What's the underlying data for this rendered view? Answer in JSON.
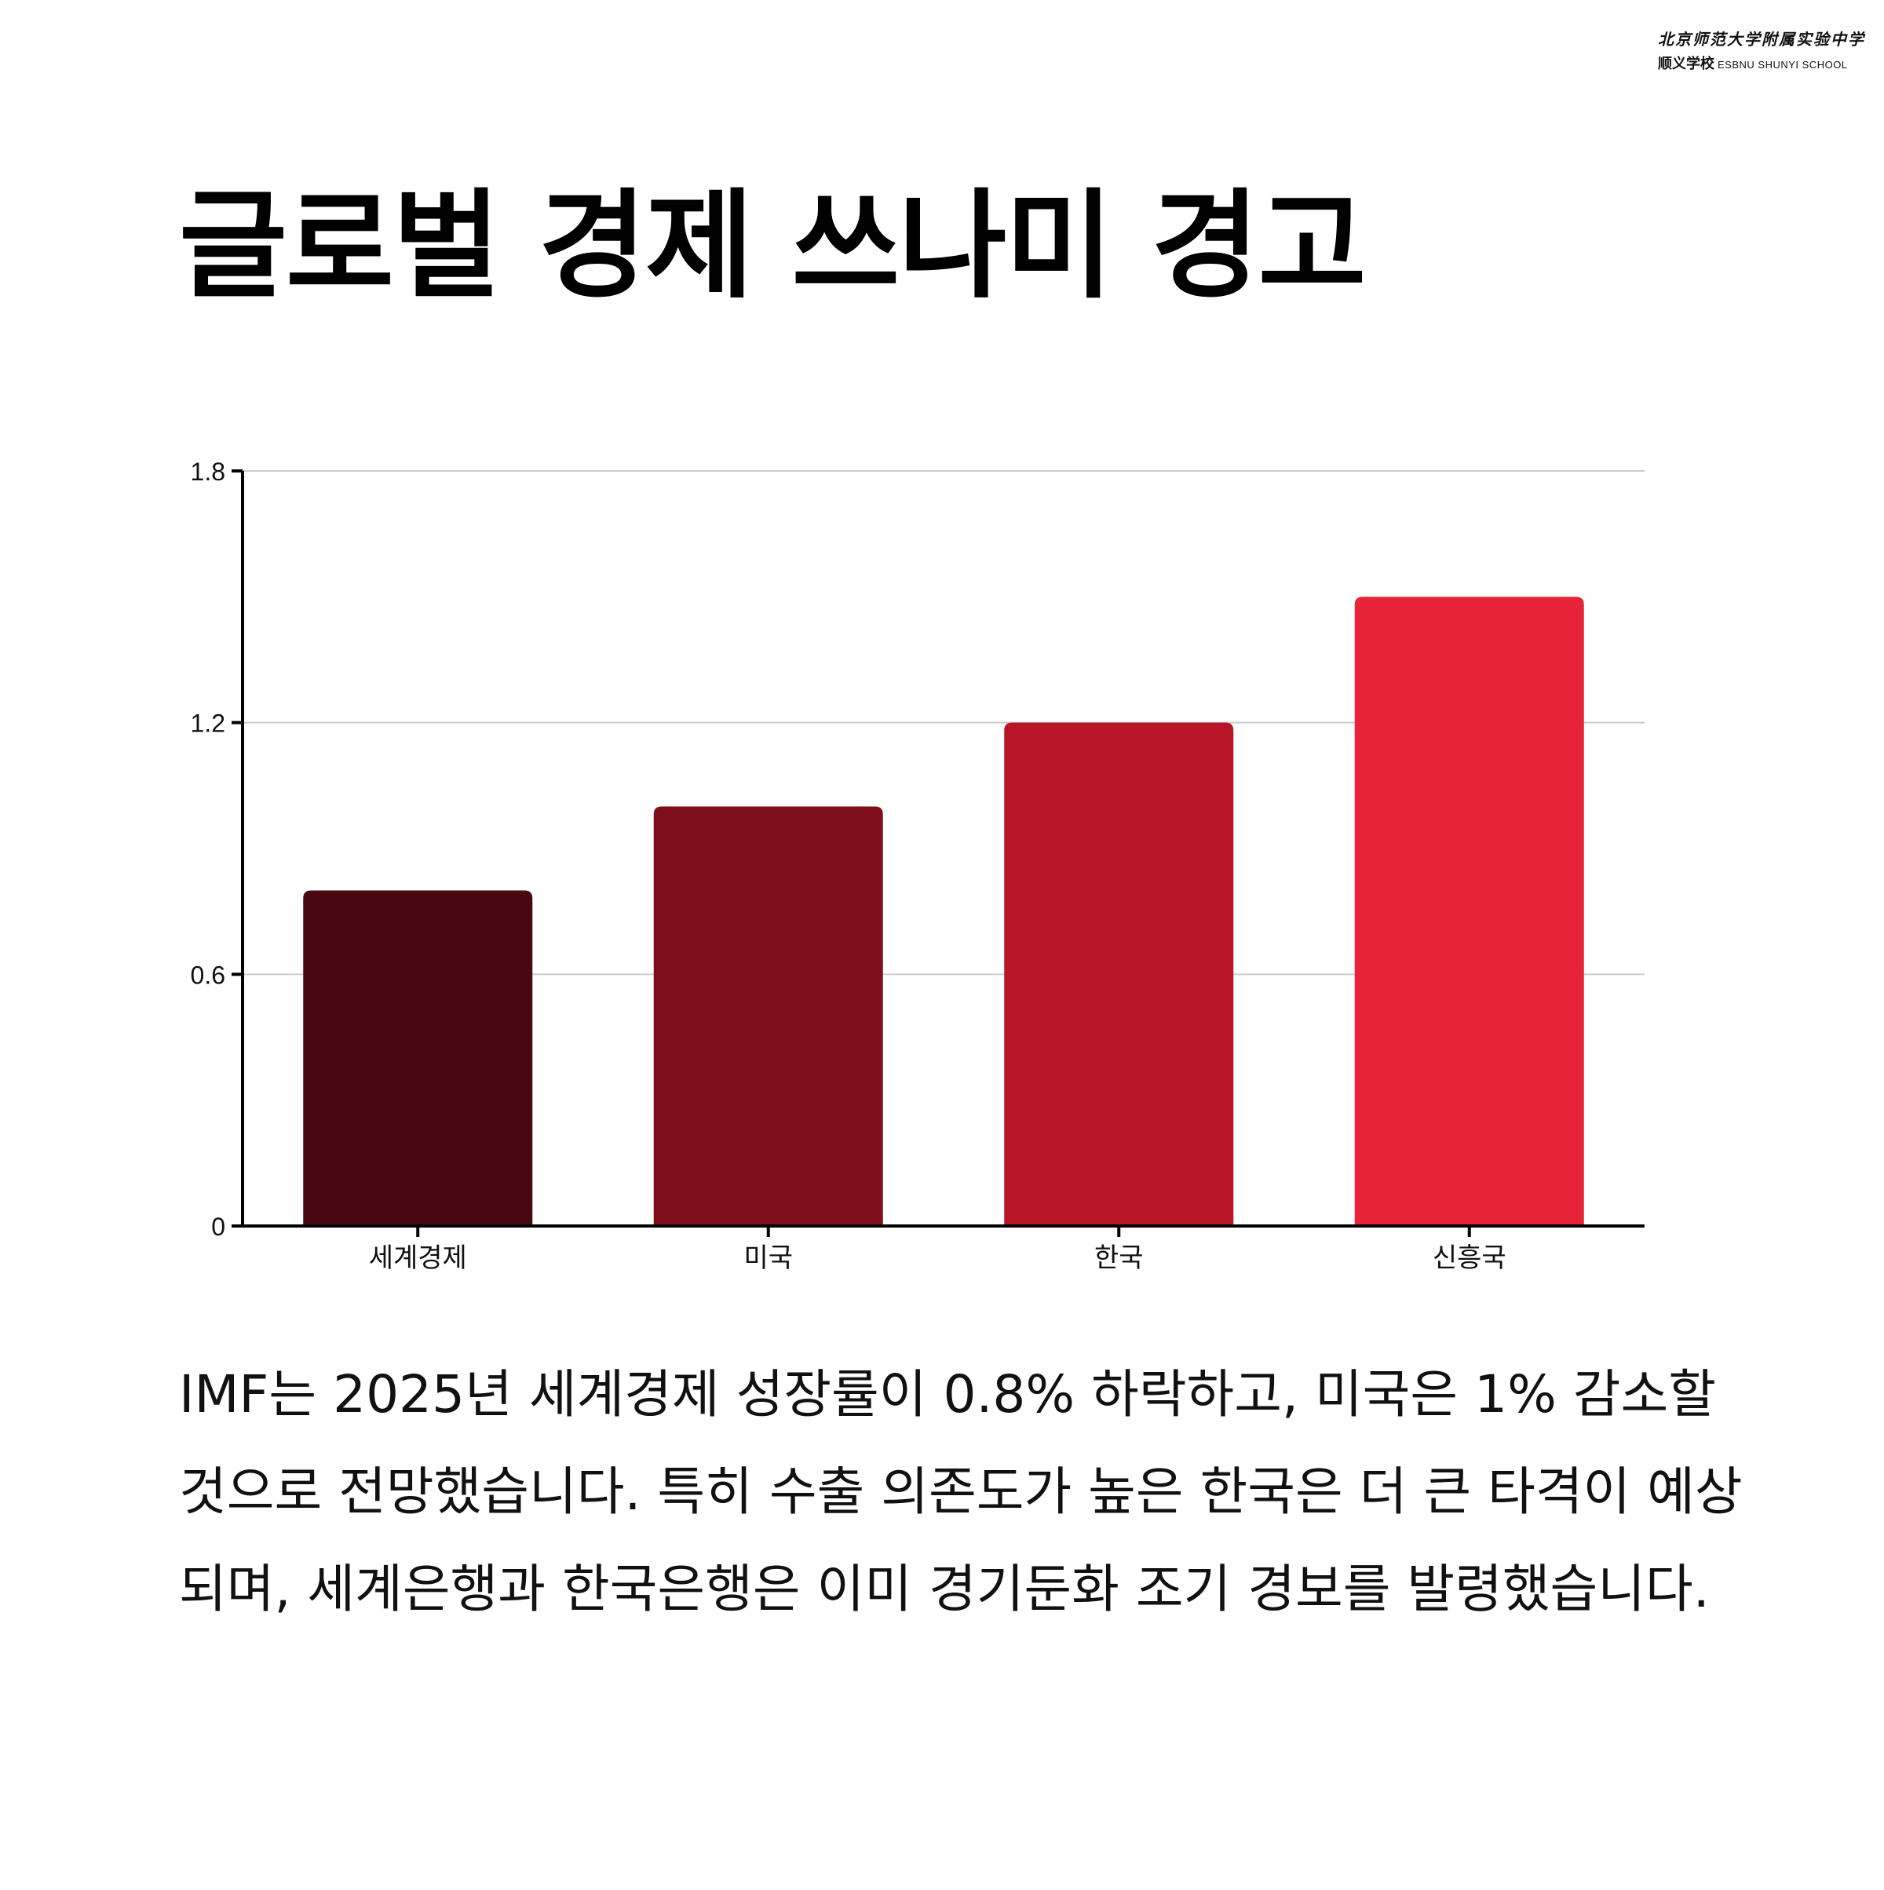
{
  "header": {
    "logo_line1": "北京师范大学附属实验中学",
    "logo_line2_cn": "顺义学校",
    "logo_line2_en": "ESBNU SHUNYI SCHOOL"
  },
  "title": "글로벌 경제 쓰나미 경고",
  "chart_data": {
    "type": "bar",
    "categories": [
      "세계경제",
      "미국",
      "한국",
      "신흥국"
    ],
    "values": [
      0.8,
      1.0,
      1.2,
      1.5
    ],
    "colors": [
      "#470810",
      "#7f0e1b",
      "#b81528",
      "#e8243a"
    ],
    "ylim": [
      0,
      1.8
    ],
    "yticks": [
      "0",
      "0.6",
      "1.2",
      "1.8"
    ],
    "ytick_values": [
      0,
      0.6,
      1.2,
      1.8
    ],
    "grid": true,
    "xlabel": "",
    "ylabel": ""
  },
  "body_text": "IMF는 2025년 세계경제 성장률이 0.8% 하락하고, 미국은 1% 감소할 것으로 전망했습니다. 특히 수출 의존도가 높은 한국은 더 큰 타격이 예상되며, 세계은행과 한국은행은 이미 경기둔화 조기 경보를 발령했습니다."
}
